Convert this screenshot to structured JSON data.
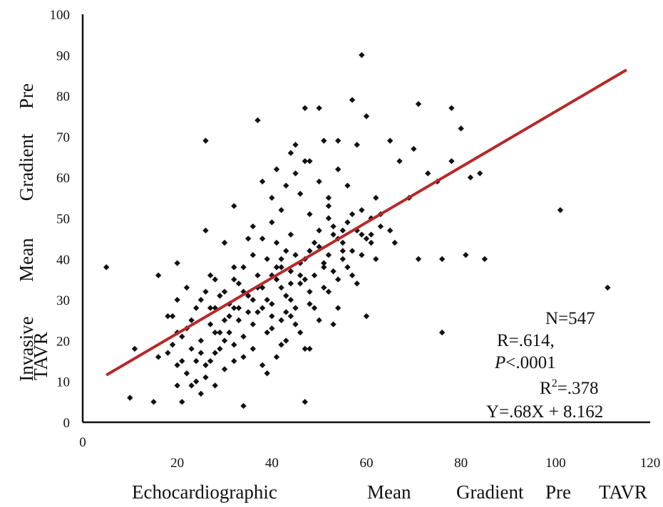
{
  "chart_data": {
    "type": "scatter",
    "title": "",
    "xlabel": "Echocardiographic Mean Gradient Pre TAVR",
    "ylabel": "Invasive Mean Gradient Pre TAVR",
    "xlabel_words": [
      "Echocardiographic",
      "Mean",
      "Gradient",
      "Pre",
      "TAVR"
    ],
    "ylabel_words": [
      "Invasive",
      "Mean",
      "Gradient",
      "Pre"
    ],
    "ylabel_extra": "TAVR",
    "xlim": [
      0,
      120
    ],
    "ylim": [
      0,
      100
    ],
    "x_ticks": [
      "20",
      "40",
      "60",
      "80",
      "100",
      "120"
    ],
    "x_origin_label": "0",
    "y_ticks": [
      "0",
      "10",
      "20",
      "30",
      "40",
      "50",
      "60",
      "70",
      "80",
      "90",
      "100"
    ],
    "grid": false,
    "legend": "none",
    "point_color": "#111111",
    "line_color": "#b52a2a",
    "trendline": {
      "slope": 0.68,
      "intercept": 8.162,
      "x_range": [
        5,
        115
      ]
    },
    "annotations": {
      "n": "N=547",
      "r": "R=.614,",
      "p_letter": "P",
      "p_rest": "<.0001",
      "r2_base": "R",
      "r2_sup": "2",
      "r2_rest": "=.378",
      "equation": "Y=.68X + 8.162"
    },
    "points": [
      [
        5,
        38
      ],
      [
        10,
        6
      ],
      [
        11,
        18
      ],
      [
        15,
        5
      ],
      [
        16,
        16
      ],
      [
        16,
        36
      ],
      [
        18,
        26
      ],
      [
        19,
        26
      ],
      [
        20,
        39
      ],
      [
        20,
        30
      ],
      [
        20,
        22
      ],
      [
        21,
        5
      ],
      [
        22,
        33
      ],
      [
        26,
        69
      ],
      [
        26,
        47
      ],
      [
        25,
        7
      ],
      [
        27,
        36
      ],
      [
        28,
        28
      ],
      [
        30,
        44
      ],
      [
        32,
        53
      ],
      [
        32,
        38
      ],
      [
        34,
        4
      ],
      [
        36,
        48
      ],
      [
        37,
        74
      ],
      [
        38,
        59
      ],
      [
        39,
        40
      ],
      [
        40,
        55
      ],
      [
        41,
        62
      ],
      [
        42,
        38
      ],
      [
        43,
        42
      ],
      [
        44,
        66
      ],
      [
        45,
        68
      ],
      [
        46,
        36
      ],
      [
        47,
        5
      ],
      [
        47,
        77
      ],
      [
        48,
        18
      ],
      [
        48,
        64
      ],
      [
        50,
        77
      ],
      [
        51,
        69
      ],
      [
        52,
        53
      ],
      [
        53,
        24
      ],
      [
        54,
        69
      ],
      [
        55,
        47
      ],
      [
        57,
        79
      ],
      [
        58,
        68
      ],
      [
        59,
        90
      ],
      [
        60,
        75
      ],
      [
        60,
        26
      ],
      [
        61,
        46
      ],
      [
        62,
        40
      ],
      [
        63,
        51
      ],
      [
        65,
        69
      ],
      [
        66,
        44
      ],
      [
        67,
        64
      ],
      [
        69,
        55
      ],
      [
        70,
        67
      ],
      [
        71,
        78
      ],
      [
        71,
        40
      ],
      [
        73,
        61
      ],
      [
        75,
        59
      ],
      [
        76,
        40
      ],
      [
        76,
        22
      ],
      [
        78,
        77
      ],
      [
        78,
        64
      ],
      [
        80,
        72
      ],
      [
        81,
        41
      ],
      [
        82,
        60
      ],
      [
        84,
        61
      ],
      [
        85,
        40
      ],
      [
        101,
        52
      ],
      [
        111,
        33
      ],
      [
        18,
        17
      ],
      [
        19,
        19
      ],
      [
        20,
        14
      ],
      [
        21,
        21
      ],
      [
        22,
        12
      ],
      [
        23,
        18
      ],
      [
        24,
        15
      ],
      [
        25,
        20
      ],
      [
        26,
        11
      ],
      [
        27,
        24
      ],
      [
        28,
        17
      ],
      [
        29,
        22
      ],
      [
        30,
        13
      ],
      [
        31,
        26
      ],
      [
        32,
        19
      ],
      [
        33,
        28
      ],
      [
        34,
        16
      ],
      [
        35,
        31
      ],
      [
        36,
        24
      ],
      [
        37,
        27
      ],
      [
        38,
        33
      ],
      [
        39,
        22
      ],
      [
        40,
        29
      ],
      [
        41,
        35
      ],
      [
        42,
        25
      ],
      [
        43,
        31
      ],
      [
        44,
        37
      ],
      [
        45,
        28
      ],
      [
        46,
        34
      ],
      [
        47,
        40
      ],
      [
        48,
        32
      ],
      [
        49,
        36
      ],
      [
        50,
        43
      ],
      [
        51,
        38
      ],
      [
        52,
        41
      ],
      [
        53,
        46
      ],
      [
        54,
        35
      ],
      [
        55,
        44
      ],
      [
        56,
        49
      ],
      [
        57,
        42
      ],
      [
        58,
        47
      ],
      [
        59,
        52
      ],
      [
        60,
        45
      ],
      [
        61,
        50
      ],
      [
        62,
        55
      ],
      [
        23,
        25
      ],
      [
        25,
        30
      ],
      [
        27,
        28
      ],
      [
        29,
        31
      ],
      [
        31,
        29
      ],
      [
        33,
        34
      ],
      [
        35,
        27
      ],
      [
        37,
        36
      ],
      [
        39,
        30
      ],
      [
        41,
        38
      ],
      [
        43,
        27
      ],
      [
        45,
        41
      ],
      [
        47,
        35
      ],
      [
        49,
        44
      ],
      [
        51,
        39
      ],
      [
        53,
        48
      ],
      [
        55,
        42
      ],
      [
        57,
        51
      ],
      [
        59,
        46
      ],
      [
        24,
        10
      ],
      [
        26,
        14
      ],
      [
        28,
        9
      ],
      [
        30,
        20
      ],
      [
        32,
        15
      ],
      [
        34,
        21
      ],
      [
        36,
        18
      ],
      [
        38,
        14
      ],
      [
        40,
        23
      ],
      [
        42,
        19
      ],
      [
        44,
        26
      ],
      [
        46,
        22
      ],
      [
        48,
        29
      ],
      [
        50,
        25
      ],
      [
        52,
        32
      ],
      [
        54,
        28
      ],
      [
        56,
        38
      ],
      [
        58,
        34
      ],
      [
        38,
        45
      ],
      [
        40,
        49
      ],
      [
        42,
        52
      ],
      [
        44,
        46
      ],
      [
        46,
        56
      ],
      [
        48,
        51
      ],
      [
        50,
        59
      ],
      [
        52,
        55
      ],
      [
        54,
        62
      ],
      [
        56,
        58
      ],
      [
        36,
        41
      ],
      [
        34,
        38
      ],
      [
        32,
        35
      ],
      [
        30,
        32
      ],
      [
        28,
        35
      ],
      [
        26,
        32
      ],
      [
        24,
        28
      ],
      [
        22,
        23
      ],
      [
        21,
        15
      ],
      [
        23,
        9
      ],
      [
        20,
        9
      ],
      [
        39,
        12
      ],
      [
        41,
        16
      ],
      [
        43,
        20
      ],
      [
        45,
        24
      ],
      [
        47,
        18
      ],
      [
        49,
        28
      ],
      [
        51,
        33
      ],
      [
        53,
        37
      ],
      [
        55,
        40
      ],
      [
        57,
        36
      ],
      [
        59,
        41
      ],
      [
        61,
        44
      ],
      [
        63,
        48
      ],
      [
        65,
        47
      ],
      [
        43,
        58
      ],
      [
        45,
        61
      ],
      [
        47,
        64
      ],
      [
        41,
        44
      ],
      [
        37,
        33
      ],
      [
        35,
        45
      ],
      [
        33,
        25
      ],
      [
        31,
        22
      ],
      [
        29,
        18
      ],
      [
        27,
        15
      ],
      [
        25,
        17
      ],
      [
        40,
        36
      ],
      [
        42,
        33
      ],
      [
        44,
        30
      ],
      [
        46,
        39
      ],
      [
        48,
        42
      ],
      [
        50,
        47
      ],
      [
        52,
        50
      ],
      [
        54,
        45
      ],
      [
        44,
        34
      ],
      [
        42,
        40
      ],
      [
        40,
        26
      ],
      [
        38,
        28
      ],
      [
        36,
        30
      ],
      [
        34,
        32
      ],
      [
        32,
        28
      ],
      [
        30,
        25
      ],
      [
        28,
        22
      ]
    ]
  }
}
